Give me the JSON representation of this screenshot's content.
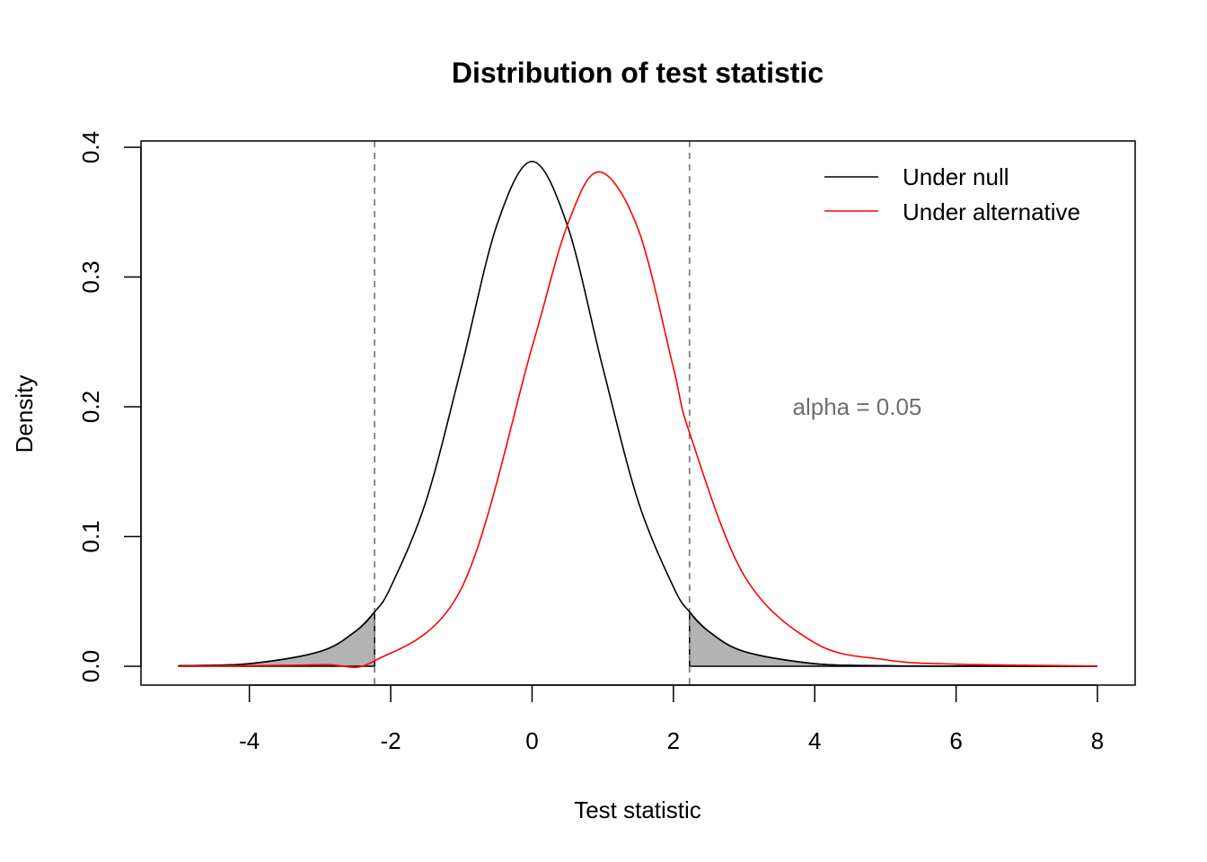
{
  "chart_data": {
    "type": "line",
    "title": "Distribution of test statistic",
    "xlabel": "Test statistic",
    "ylabel": "Density",
    "xlim": [
      -5,
      8
    ],
    "ylim": [
      0,
      0.4
    ],
    "x_ticks": [
      -4,
      -2,
      0,
      2,
      4,
      6,
      8
    ],
    "x_tick_labels": [
      "-4",
      "-2",
      "0",
      "2",
      "4",
      "6",
      "8"
    ],
    "y_ticks": [
      0.0,
      0.1,
      0.2,
      0.3,
      0.4
    ],
    "y_tick_labels": [
      "0.0",
      "0.1",
      "0.2",
      "0.3",
      "0.4"
    ],
    "grid": false,
    "legend_position": "top-right",
    "series": [
      {
        "name": "Under null",
        "color": "#000000",
        "distribution": "t",
        "df": 10,
        "ncp": 0,
        "x": [
          -5,
          -4,
          -3,
          -2.5,
          -2.228,
          -2,
          -1.5,
          -1,
          -0.5,
          0,
          0.5,
          1,
          1.5,
          2,
          2.228,
          2.5,
          3,
          4,
          5,
          6,
          8
        ],
        "y": [
          0.0004,
          0.002,
          0.0114,
          0.0269,
          0.0419,
          0.0611,
          0.1274,
          0.2304,
          0.3397,
          0.3891,
          0.3397,
          0.2304,
          0.1274,
          0.0611,
          0.0419,
          0.0269,
          0.0114,
          0.002,
          0.0004,
          0.0001,
          0.0
        ]
      },
      {
        "name": "Under alternative",
        "color": "#ff0000",
        "distribution": "noncentral t",
        "df": 10,
        "ncp": 0.95,
        "x": [
          -5,
          -3,
          -2.228,
          -1,
          0,
          0.5,
          0.95,
          1.5,
          2,
          2.228,
          3,
          4,
          5,
          6,
          8
        ],
        "y": [
          0.0,
          0.0012,
          0.0042,
          0.06,
          0.246,
          0.34,
          0.381,
          0.337,
          0.23,
          0.18,
          0.07,
          0.018,
          0.005,
          0.0016,
          0.0002
        ]
      }
    ],
    "critical_values": [
      -2.228,
      2.228
    ],
    "critical_line_color": "#808080",
    "shaded_regions": [
      {
        "from": -5,
        "to": -2.228,
        "under": "Under null",
        "color": "#b3b3b3"
      },
      {
        "from": 2.228,
        "to": 8,
        "under": "Under null",
        "color": "#b3b3b3"
      }
    ],
    "annotations": [
      {
        "text": "alpha = 0.05",
        "x": 4.6,
        "y": 0.2,
        "color": "#6e6e6e"
      }
    ]
  }
}
